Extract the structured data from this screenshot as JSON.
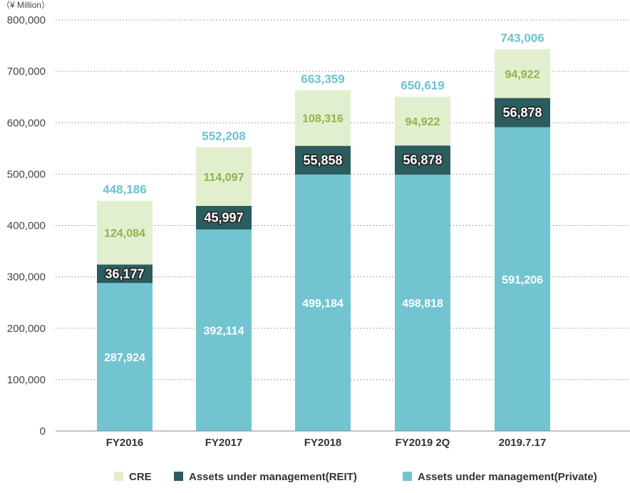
{
  "chart_data": {
    "type": "bar",
    "stacked": true,
    "unit_label": "（¥ Million）",
    "categories": [
      "FY2016",
      "FY2017",
      "FY2018",
      "FY2019 2Q",
      "2019.7.17"
    ],
    "series": [
      {
        "name": "Assets under management(Private)",
        "color": "#72c4d1",
        "label_color": "#ffffff",
        "values": [
          287924,
          392114,
          499184,
          498818,
          591206
        ],
        "labels": [
          "287,924",
          "392,114",
          "499,184",
          "498,818",
          "591,206"
        ]
      },
      {
        "name": "Assets under management(REIT)",
        "color": "#2b5c5e",
        "label_color": "#ffffff",
        "values": [
          36177,
          45997,
          55858,
          56878,
          56878
        ],
        "labels": [
          "36,177",
          "45,997",
          "55,858",
          "56,878",
          "56,878"
        ]
      },
      {
        "name": "CRE",
        "color": "#e2efcf",
        "label_color": "#8db44b",
        "values": [
          124084,
          114097,
          108316,
          94922,
          94922
        ],
        "labels": [
          "124,084",
          "114,097",
          "108,316",
          "94,922",
          "94,922"
        ]
      }
    ],
    "totals": [
      448186,
      552208,
      663359,
      650619,
      743006
    ],
    "total_labels": [
      "448,186",
      "552,208",
      "663,359",
      "650,619",
      "743,006"
    ],
    "total_label_color": "#6cc3cf",
    "ylim": [
      0,
      800000
    ],
    "yticks": [
      0,
      100000,
      200000,
      300000,
      400000,
      500000,
      600000,
      700000,
      800000
    ],
    "ytick_labels": [
      "0",
      "100,000",
      "200,000",
      "300,000",
      "400,000",
      "500,000",
      "600,000",
      "700,000",
      "800,000"
    ],
    "grid": true,
    "legend_position": "bottom-right",
    "legend_order": [
      "CRE",
      "Assets under management(REIT)",
      "Assets under management(Private)"
    ]
  }
}
